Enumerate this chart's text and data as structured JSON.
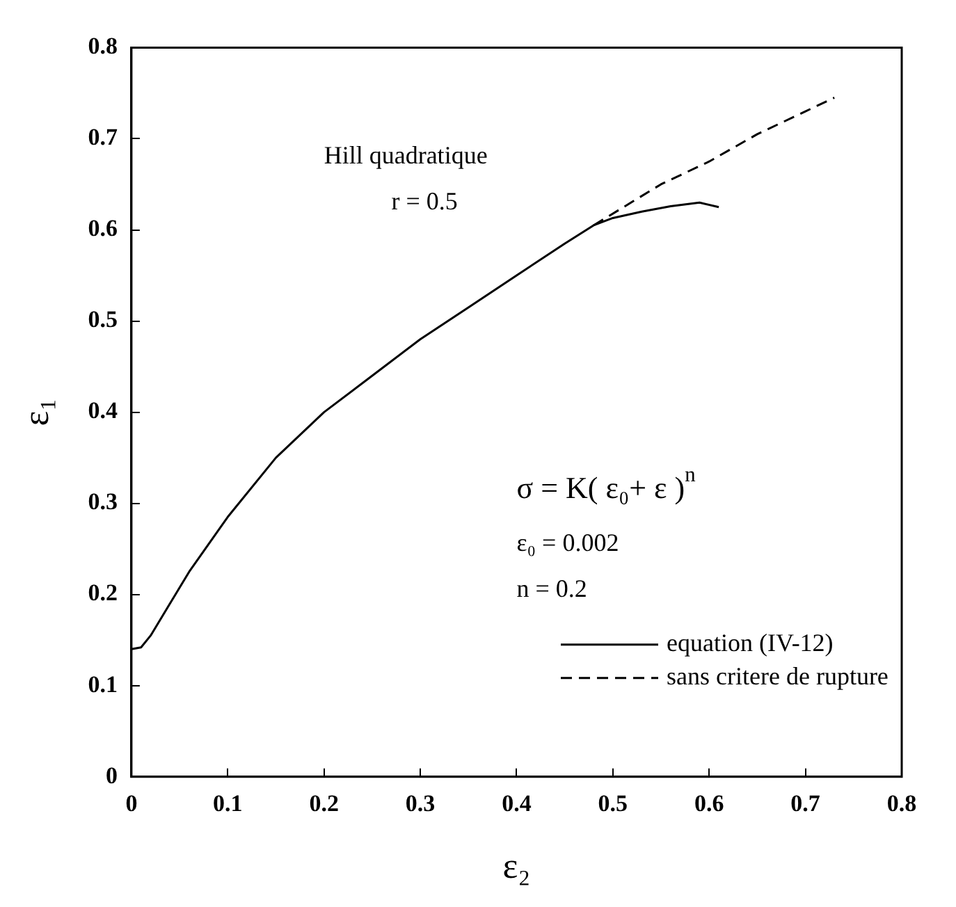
{
  "chart_data": {
    "type": "line",
    "xlabel": "ε₂",
    "ylabel": "ε₁",
    "xlim": [
      0,
      0.8
    ],
    "ylim": [
      0,
      0.8
    ],
    "xticks": [
      0,
      0.1,
      0.2,
      0.3,
      0.4,
      0.5,
      0.6,
      0.7,
      0.8
    ],
    "yticks": [
      0,
      0.1,
      0.2,
      0.3,
      0.4,
      0.5,
      0.6,
      0.7,
      0.8
    ],
    "grid": false,
    "legend": "bottom right",
    "marker": "none",
    "series": [
      {
        "name": "equation (IV-12)",
        "color": "#000000",
        "line_style": "solid",
        "x": [
          0,
          0.01,
          0.02,
          0.04,
          0.06,
          0.1,
          0.15,
          0.2,
          0.25,
          0.3,
          0.35,
          0.4,
          0.45,
          0.48,
          0.5,
          0.53,
          0.56,
          0.59,
          0.61
        ],
        "values": [
          0.14,
          0.142,
          0.155,
          0.19,
          0.225,
          0.285,
          0.35,
          0.4,
          0.44,
          0.48,
          0.515,
          0.55,
          0.585,
          0.605,
          0.613,
          0.62,
          0.626,
          0.63,
          0.625
        ]
      },
      {
        "name": "sans critere de rupture",
        "color": "#000000",
        "line_style": "dashed",
        "x": [
          0.48,
          0.55,
          0.6,
          0.65,
          0.7,
          0.73
        ],
        "values": [
          0.605,
          0.65,
          0.675,
          0.705,
          0.73,
          0.745
        ]
      }
    ],
    "annotations": [
      "Hill quadratique",
      "r = 0.5",
      "σ = K( ε₀+ ε )$^{n}$",
      "ε₀ = 0.002",
      "n = 0.2"
    ]
  }
}
